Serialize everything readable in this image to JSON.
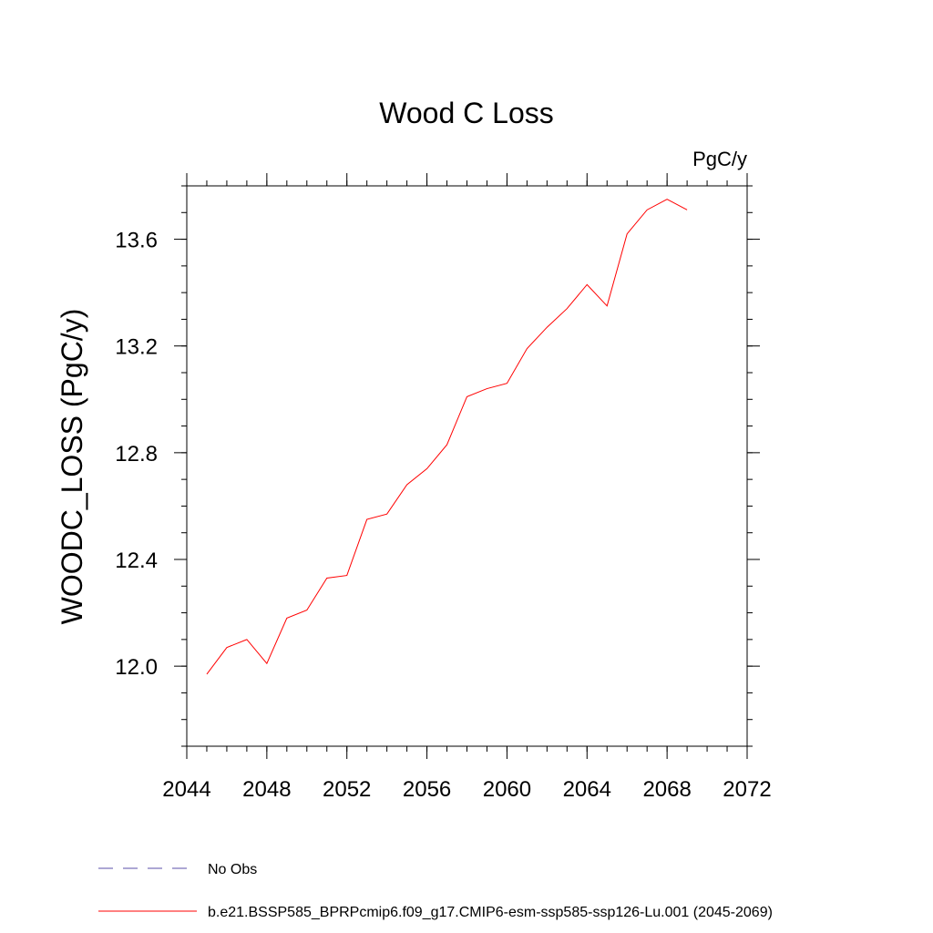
{
  "chart_data": {
    "type": "line",
    "title": "Wood C Loss",
    "units_label": "PgC/y",
    "ylabel": "WOODC_LOSS  (PgC/y)",
    "xlabel": "",
    "xlim": [
      2044,
      2072
    ],
    "ylim": [
      11.7,
      13.8
    ],
    "x_ticks": [
      2044,
      2048,
      2052,
      2056,
      2060,
      2064,
      2068,
      2072
    ],
    "x_tick_labels": [
      "2044",
      "2048",
      "2052",
      "2056",
      "2060",
      "2064",
      "2068",
      "2072"
    ],
    "y_ticks": [
      12.0,
      12.4,
      12.8,
      13.2,
      13.6
    ],
    "y_tick_labels": [
      "12.0",
      "12.4",
      "12.8",
      "13.2",
      "13.6"
    ],
    "x_minor_step": 1,
    "y_minor_step": 0.1,
    "grid": false,
    "legend_position": "bottom",
    "series": [
      {
        "name": "No Obs",
        "color": "#5b4fa8",
        "dash": "dashed",
        "x": [],
        "y": []
      },
      {
        "name": "b.e21.BSSP585_BPRPcmip6.f09_g17.CMIP6-esm-ssp585-ssp126-Lu.001 (2045-2069)",
        "color": "#ff0000",
        "dash": "solid",
        "x": [
          2045,
          2046,
          2047,
          2048,
          2049,
          2050,
          2051,
          2052,
          2053,
          2054,
          2055,
          2056,
          2057,
          2058,
          2059,
          2060,
          2061,
          2062,
          2063,
          2064,
          2065,
          2066,
          2067,
          2068,
          2069
        ],
        "y": [
          11.97,
          12.07,
          12.1,
          12.01,
          12.18,
          12.21,
          12.33,
          12.34,
          12.55,
          12.57,
          12.68,
          12.74,
          12.83,
          13.01,
          13.04,
          13.06,
          13.19,
          13.27,
          13.34,
          13.43,
          13.35,
          13.62,
          13.71,
          13.75,
          13.71
        ]
      }
    ]
  }
}
